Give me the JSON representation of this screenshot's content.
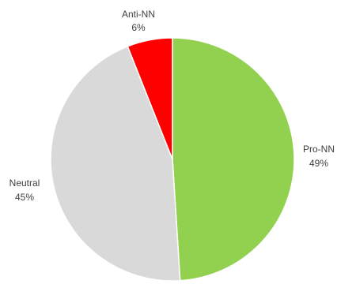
{
  "chart_data": {
    "type": "pie",
    "title": "",
    "slices": [
      {
        "label": "Pro-NN",
        "value": 49,
        "value_label": "49%",
        "color": "#92d050"
      },
      {
        "label": "Neutral",
        "value": 45,
        "value_label": "45%",
        "color": "#d9d9d9"
      },
      {
        "label": "Anti-NN",
        "value": 6,
        "value_label": "6%",
        "color": "#ff0000"
      }
    ],
    "start_angle": "12 o'clock",
    "direction": "clockwise",
    "legend": "none",
    "labels": "outside, category name and percentage"
  }
}
